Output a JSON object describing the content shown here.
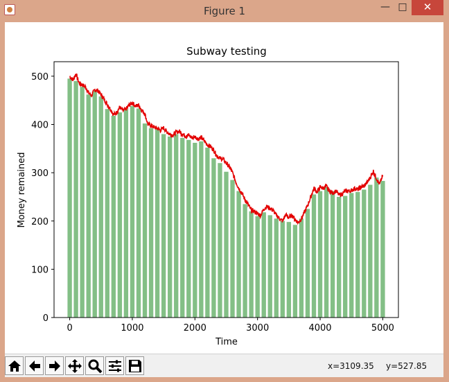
{
  "window": {
    "title": "Figure 1",
    "minimize_glyph": "—",
    "maximize_glyph": "□",
    "close_glyph": "✕"
  },
  "toolbar": {
    "buttons": [
      {
        "name": "home-icon",
        "label": "Home"
      },
      {
        "name": "back-arrow-icon",
        "label": "Back"
      },
      {
        "name": "forward-arrow-icon",
        "label": "Forward"
      },
      {
        "name": "pan-move-icon",
        "label": "Pan"
      },
      {
        "name": "zoom-magnifier-icon",
        "label": "Zoom"
      },
      {
        "name": "configure-subplots-icon",
        "label": "Subplots"
      },
      {
        "name": "save-floppy-icon",
        "label": "Save"
      }
    ],
    "status_x": "x=3109.35",
    "status_y": "y=527.85"
  },
  "colors": {
    "bar": "#83bf86",
    "line": "#e30000",
    "titlebar": "#dba68a",
    "close": "#c7463b"
  },
  "chart_data": {
    "type": "bar",
    "title": "Subway testing",
    "xlabel": "Time",
    "ylabel": "Money remained",
    "xlim": [
      -250,
      5250
    ],
    "ylim": [
      0,
      530
    ],
    "xticks": [
      0,
      1000,
      2000,
      3000,
      4000,
      5000
    ],
    "yticks": [
      0,
      100,
      200,
      300,
      400,
      500
    ],
    "grid": false,
    "bar_width": 70,
    "series": [
      {
        "kind": "bar",
        "x": [
          0,
          100,
          200,
          300,
          400,
          500,
          600,
          700,
          800,
          900,
          1000,
          1100,
          1200,
          1300,
          1400,
          1500,
          1600,
          1700,
          1800,
          1900,
          2000,
          2100,
          2200,
          2300,
          2400,
          2500,
          2600,
          2700,
          2800,
          2900,
          3000,
          3100,
          3200,
          3300,
          3400,
          3500,
          3600,
          3700,
          3800,
          3900,
          4000,
          4100,
          4200,
          4300,
          4400,
          4500,
          4600,
          4700,
          4800,
          4900,
          5000
        ],
        "values": [
          495,
          490,
          478,
          462,
          470,
          458,
          432,
          418,
          425,
          432,
          438,
          433,
          402,
          392,
          390,
          380,
          375,
          380,
          372,
          368,
          362,
          365,
          352,
          330,
          320,
          302,
          285,
          262,
          235,
          220,
          210,
          218,
          212,
          205,
          200,
          198,
          192,
          205,
          225,
          255,
          262,
          270,
          262,
          250,
          252,
          258,
          260,
          265,
          275,
          290,
          283
        ]
      },
      {
        "kind": "line",
        "x": [
          0,
          50,
          100,
          150,
          200,
          250,
          300,
          350,
          400,
          450,
          500,
          550,
          600,
          650,
          700,
          750,
          800,
          850,
          900,
          950,
          1000,
          1050,
          1100,
          1150,
          1200,
          1250,
          1300,
          1350,
          1400,
          1450,
          1500,
          1550,
          1600,
          1650,
          1700,
          1750,
          1800,
          1850,
          1900,
          1950,
          2000,
          2050,
          2100,
          2150,
          2200,
          2250,
          2300,
          2350,
          2400,
          2450,
          2500,
          2550,
          2600,
          2650,
          2700,
          2750,
          2800,
          2850,
          2900,
          2950,
          3000,
          3050,
          3100,
          3150,
          3200,
          3250,
          3300,
          3350,
          3400,
          3450,
          3500,
          3550,
          3600,
          3650,
          3700,
          3750,
          3800,
          3850,
          3900,
          3950,
          4000,
          4050,
          4100,
          4150,
          4200,
          4250,
          4300,
          4350,
          4400,
          4450,
          4500,
          4550,
          4600,
          4650,
          4700,
          4750,
          4800,
          4850,
          4900,
          4950,
          5000
        ],
        "values": [
          500,
          492,
          505,
          486,
          482,
          478,
          466,
          460,
          472,
          470,
          462,
          452,
          442,
          432,
          420,
          425,
          436,
          428,
          432,
          440,
          445,
          438,
          440,
          430,
          422,
          400,
          398,
          394,
          392,
          388,
          393,
          385,
          380,
          378,
          384,
          386,
          380,
          376,
          378,
          372,
          375,
          370,
          373,
          366,
          358,
          354,
          347,
          335,
          330,
          328,
          320,
          312,
          300,
          282,
          268,
          258,
          244,
          234,
          222,
          220,
          215,
          212,
          225,
          230,
          226,
          222,
          212,
          205,
          200,
          213,
          207,
          212,
          203,
          197,
          205,
          218,
          232,
          250,
          268,
          260,
          270,
          268,
          272,
          262,
          258,
          262,
          254,
          256,
          262,
          262,
          263,
          268,
          265,
          270,
          272,
          280,
          290,
          303,
          288,
          276,
          295
        ]
      }
    ]
  }
}
